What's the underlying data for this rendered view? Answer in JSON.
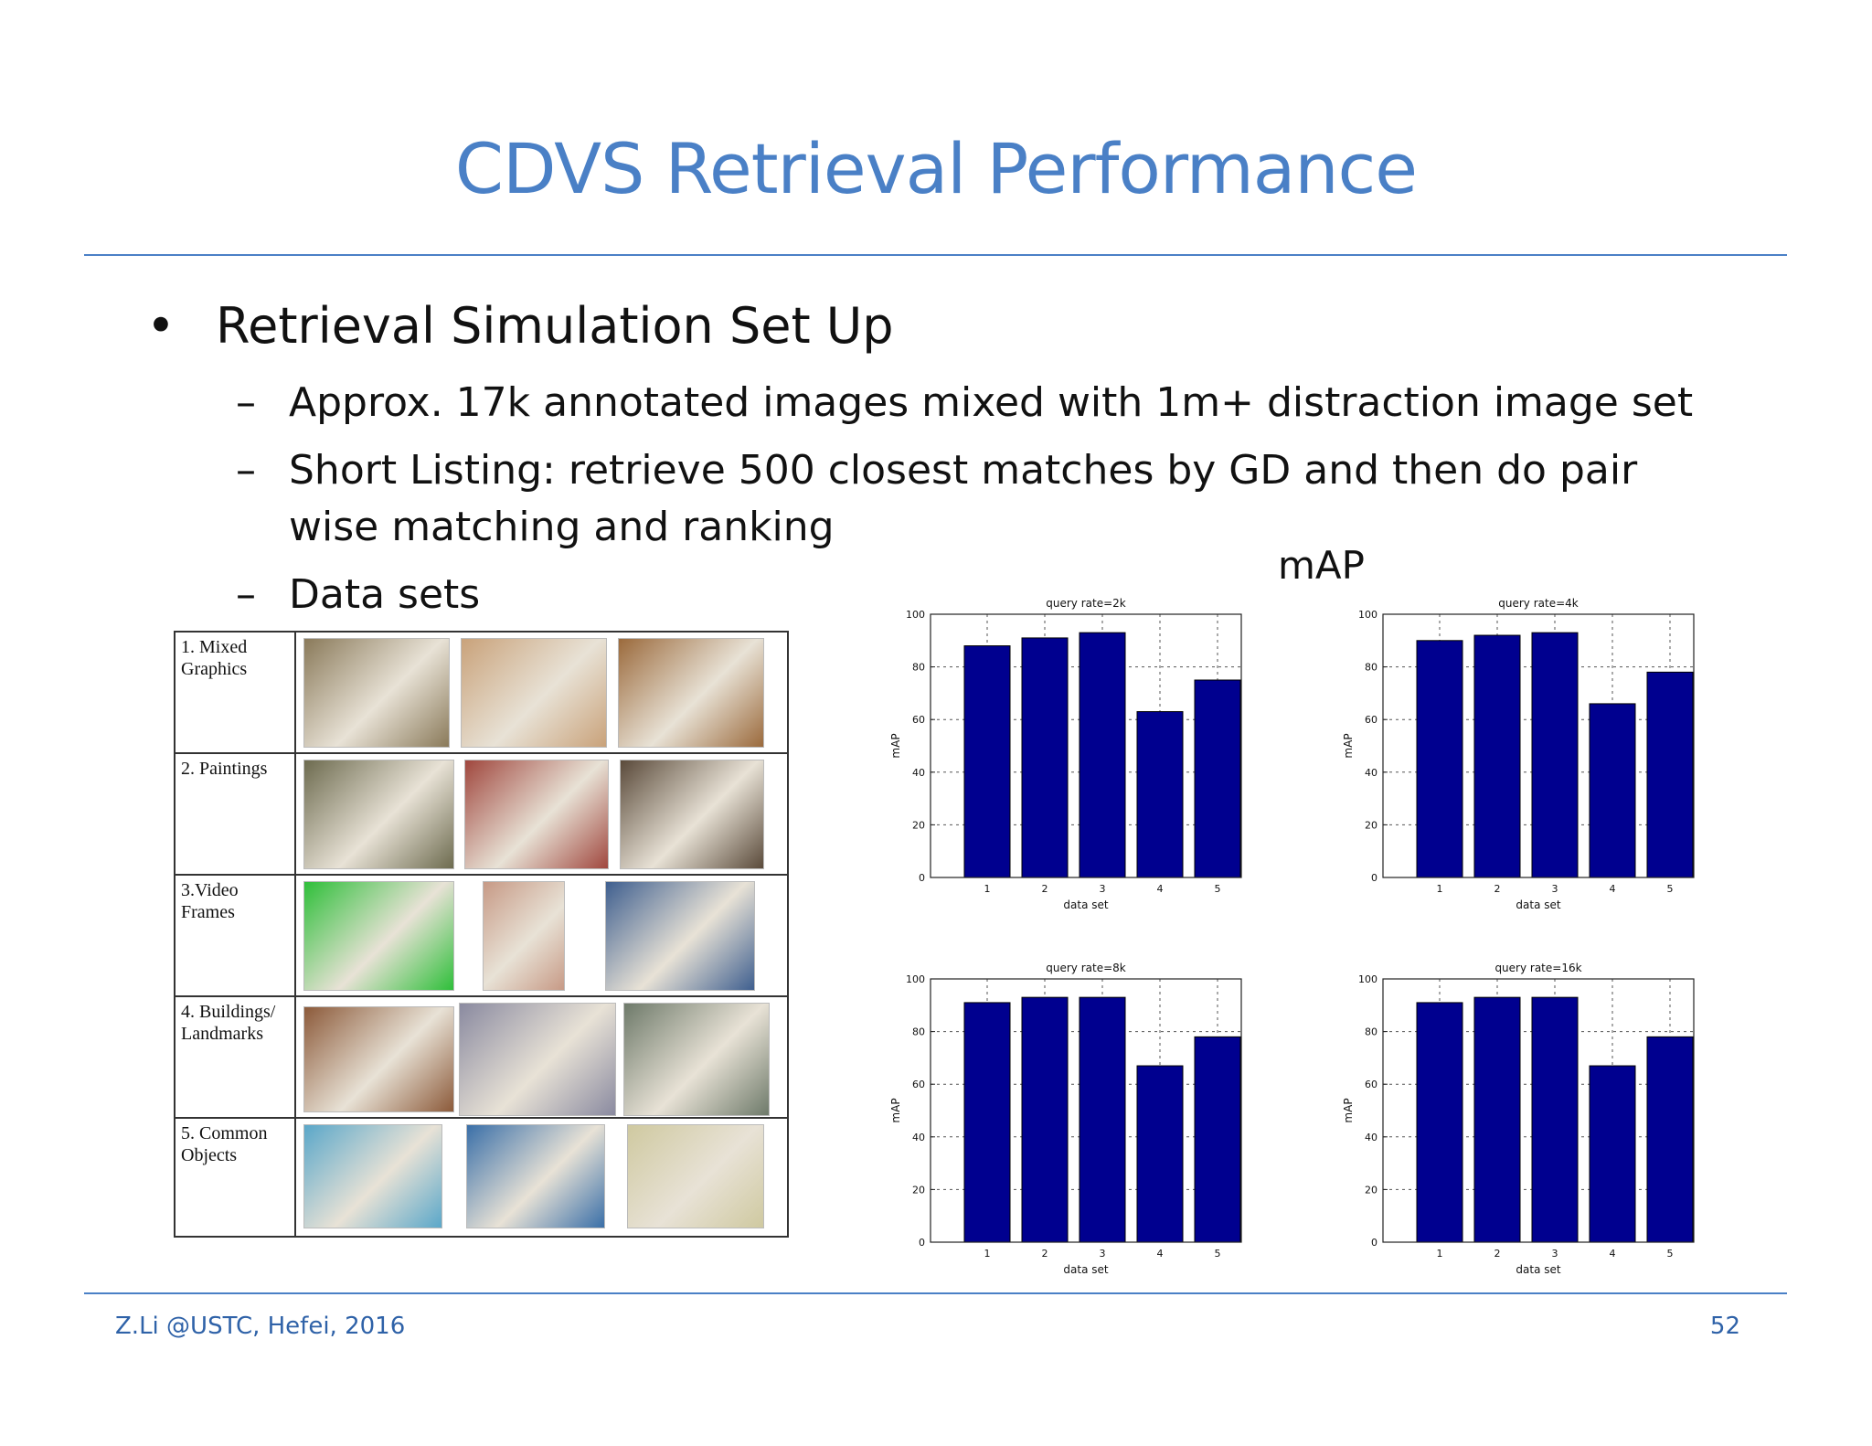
{
  "slide": {
    "title": "CDVS Retrieval Performance",
    "bullet": "Retrieval Simulation Set Up",
    "subbullets": [
      "Approx. 17k annotated images mixed with 1m+ distraction image set",
      "Short Listing: retrieve 500 closest matches by GD and then do pair",
      "wise matching and ranking",
      "Data sets"
    ],
    "map_label": "mAP",
    "footer_left": "Z.Li @USTC, Hefei, 2016",
    "page_number": "52"
  },
  "dataset_table": {
    "rows": [
      {
        "label": "1. Mixed\nGraphics",
        "colors": [
          "#8a7a5a",
          "#c9a27a",
          "#9b6a3c"
        ]
      },
      {
        "label": "2. Paintings",
        "colors": [
          "#6d6b4f",
          "#a0473e",
          "#5a4a3a"
        ]
      },
      {
        "label": "3.Video\nFrames",
        "colors": [
          "#2fbf3a",
          "#c79a86",
          "#3f5f8f"
        ]
      },
      {
        "label": "4. Buildings/\nLandmarks",
        "colors": [
          "#8c5a3a",
          "#8a8aa0",
          "#6e7a6a"
        ]
      },
      {
        "label": "5. Common\nObjects",
        "colors": [
          "#5aa7c9",
          "#3a6fa8",
          "#cfc9a0"
        ]
      }
    ]
  },
  "chart_data": [
    {
      "type": "bar",
      "title": "query rate=2k",
      "xlabel": "data set",
      "ylabel": "mAP",
      "categories": [
        "1",
        "2",
        "3",
        "4",
        "5"
      ],
      "values": [
        88,
        91,
        93,
        63,
        75
      ],
      "ylim": [
        0,
        100
      ],
      "yticks": [
        0,
        20,
        40,
        60,
        80,
        100
      ],
      "grid": true,
      "bar_color": "#00008f"
    },
    {
      "type": "bar",
      "title": "query rate=4k",
      "xlabel": "data set",
      "ylabel": "mAP",
      "categories": [
        "1",
        "2",
        "3",
        "4",
        "5"
      ],
      "values": [
        90,
        92,
        93,
        66,
        78
      ],
      "ylim": [
        0,
        100
      ],
      "yticks": [
        0,
        20,
        40,
        60,
        80,
        100
      ],
      "grid": true,
      "bar_color": "#00008f"
    },
    {
      "type": "bar",
      "title": "query rate=8k",
      "xlabel": "data set",
      "ylabel": "mAP",
      "categories": [
        "1",
        "2",
        "3",
        "4",
        "5"
      ],
      "values": [
        91,
        93,
        93,
        67,
        78
      ],
      "ylim": [
        0,
        100
      ],
      "yticks": [
        0,
        20,
        40,
        60,
        80,
        100
      ],
      "grid": true,
      "bar_color": "#00008f"
    },
    {
      "type": "bar",
      "title": "query rate=16k",
      "xlabel": "data set",
      "ylabel": "mAP",
      "categories": [
        "1",
        "2",
        "3",
        "4",
        "5"
      ],
      "values": [
        91,
        93,
        93,
        67,
        78
      ],
      "ylim": [
        0,
        100
      ],
      "yticks": [
        0,
        20,
        40,
        60,
        80,
        100
      ],
      "grid": true,
      "bar_color": "#00008f"
    }
  ]
}
